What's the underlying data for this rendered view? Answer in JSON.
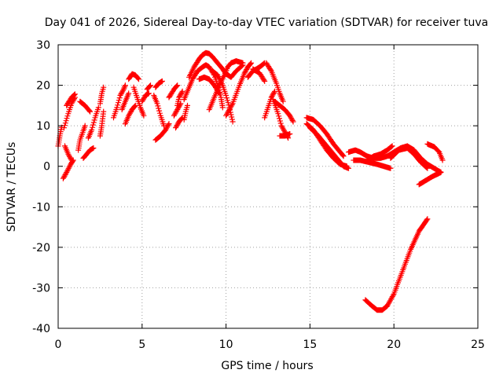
{
  "chart_data": {
    "type": "scatter",
    "title": "Day 041 of 2026, Sidereal Day-to-day VTEC variation (SDTVAR) for receiver tuva",
    "xlabel": "GPS time / hours",
    "ylabel": "SDTVAR / TECUs",
    "xlim": [
      0,
      25
    ],
    "ylim": [
      -40,
      30
    ],
    "xticks": [
      0,
      5,
      10,
      15,
      20,
      25
    ],
    "yticks": [
      30,
      20,
      10,
      0,
      -10,
      -20,
      -30,
      -40
    ],
    "grid": true,
    "marker": "+",
    "color": "#ff0000",
    "tracks": [
      [
        [
          0.0,
          5.0
        ],
        [
          0.1,
          7.5
        ],
        [
          0.2,
          9.6
        ]
      ],
      [
        [
          0.3,
          -3.0
        ],
        [
          0.5,
          -1.5
        ],
        [
          0.75,
          0.5
        ],
        [
          0.9,
          1.5
        ]
      ],
      [
        [
          0.35,
          9.5
        ],
        [
          0.6,
          13.0
        ],
        [
          0.8,
          15.5
        ],
        [
          1.0,
          17.0
        ]
      ],
      [
        [
          0.4,
          5.0
        ],
        [
          0.6,
          3.0
        ],
        [
          0.8,
          1.5
        ]
      ],
      [
        [
          0.5,
          15.0
        ],
        [
          0.8,
          17.0
        ],
        [
          1.0,
          17.8
        ]
      ],
      [
        [
          1.2,
          4.0
        ],
        [
          1.3,
          6.5
        ],
        [
          1.5,
          8.8
        ],
        [
          1.6,
          10.0
        ]
      ],
      [
        [
          1.3,
          16.0
        ],
        [
          1.6,
          15.0
        ],
        [
          1.9,
          13.5
        ]
      ],
      [
        [
          1.5,
          2.0
        ],
        [
          1.7,
          3.0
        ],
        [
          1.9,
          4.0
        ],
        [
          2.1,
          4.5
        ]
      ],
      [
        [
          1.8,
          7.0
        ],
        [
          2.0,
          9.0
        ],
        [
          2.2,
          12.0
        ],
        [
          2.4,
          14.5
        ]
      ],
      [
        [
          2.5,
          7.5
        ],
        [
          2.6,
          10.0
        ],
        [
          2.7,
          13.5
        ]
      ],
      [
        [
          2.5,
          15.5
        ],
        [
          2.6,
          18.0
        ],
        [
          2.7,
          19.5
        ]
      ],
      [
        [
          3.3,
          12.0
        ],
        [
          3.5,
          14.5
        ],
        [
          3.7,
          17.5
        ],
        [
          3.9,
          19.0
        ],
        [
          4.0,
          20.0
        ]
      ],
      [
        [
          3.8,
          14.0
        ],
        [
          4.0,
          16.0
        ],
        [
          4.2,
          18.0
        ]
      ],
      [
        [
          4.0,
          10.5
        ],
        [
          4.2,
          12.5
        ],
        [
          4.4,
          14.0
        ],
        [
          4.6,
          15.0
        ]
      ],
      [
        [
          4.2,
          21.5
        ],
        [
          4.4,
          22.8
        ],
        [
          4.6,
          22.5
        ],
        [
          4.8,
          21.5
        ]
      ],
      [
        [
          4.5,
          19.5
        ],
        [
          4.7,
          17.0
        ],
        [
          4.9,
          14.5
        ],
        [
          5.1,
          12.5
        ]
      ],
      [
        [
          5.0,
          16.0
        ],
        [
          5.2,
          17.5
        ],
        [
          5.4,
          18.0
        ]
      ],
      [
        [
          5.3,
          19.0
        ],
        [
          5.5,
          20.0
        ]
      ],
      [
        [
          5.8,
          19.5
        ],
        [
          6.0,
          20.5
        ],
        [
          6.2,
          21.0
        ]
      ],
      [
        [
          5.7,
          17.5
        ],
        [
          5.9,
          15.5
        ],
        [
          6.1,
          12.5
        ],
        [
          6.3,
          10.0
        ]
      ],
      [
        [
          5.8,
          6.5
        ],
        [
          6.1,
          7.5
        ],
        [
          6.4,
          9.0
        ],
        [
          6.6,
          10.5
        ]
      ],
      [
        [
          6.6,
          17.0
        ],
        [
          6.9,
          19.0
        ],
        [
          7.1,
          20.0
        ]
      ],
      [
        [
          6.9,
          12.5
        ],
        [
          7.1,
          14.0
        ],
        [
          7.3,
          15.5
        ]
      ],
      [
        [
          7.0,
          9.5
        ],
        [
          7.2,
          11.0
        ],
        [
          7.4,
          12.0
        ]
      ],
      [
        [
          7.1,
          15.0
        ],
        [
          7.2,
          17.0
        ],
        [
          7.4,
          18.5
        ]
      ],
      [
        [
          7.5,
          11.5
        ],
        [
          7.6,
          13.5
        ],
        [
          7.7,
          15.0
        ]
      ],
      [
        [
          7.5,
          16.5
        ],
        [
          7.8,
          19.5
        ],
        [
          8.0,
          21.5
        ],
        [
          8.3,
          23.5
        ],
        [
          8.6,
          24.5
        ],
        [
          8.8,
          25.0
        ],
        [
          9.0,
          24.5
        ],
        [
          9.3,
          22.5
        ],
        [
          9.5,
          20.0
        ],
        [
          9.7,
          17.0
        ],
        [
          9.8,
          14.5
        ]
      ],
      [
        [
          7.8,
          22.0
        ],
        [
          8.1,
          24.5
        ],
        [
          8.4,
          26.5
        ],
        [
          8.6,
          27.5
        ],
        [
          8.8,
          28.0
        ],
        [
          9.0,
          27.8
        ],
        [
          9.2,
          27.0
        ],
        [
          9.5,
          25.5
        ],
        [
          9.8,
          24.0
        ],
        [
          10.0,
          22.8
        ],
        [
          10.3,
          22.0
        ],
        [
          10.6,
          23.5
        ],
        [
          11.0,
          25.0
        ]
      ],
      [
        [
          8.4,
          21.5
        ],
        [
          8.7,
          22.0
        ],
        [
          9.0,
          21.5
        ],
        [
          9.3,
          20.0
        ],
        [
          9.6,
          18.0
        ]
      ],
      [
        [
          9.0,
          14.0
        ],
        [
          9.3,
          17.0
        ],
        [
          9.6,
          20.0
        ],
        [
          9.9,
          22.5
        ],
        [
          10.1,
          24.5
        ],
        [
          10.3,
          25.5
        ],
        [
          10.6,
          26.0
        ],
        [
          11.0,
          25.5
        ]
      ],
      [
        [
          9.2,
          23.5
        ],
        [
          9.5,
          22.5
        ],
        [
          9.8,
          20.0
        ],
        [
          10.0,
          17.5
        ],
        [
          10.2,
          14.5
        ],
        [
          10.4,
          11.0
        ]
      ],
      [
        [
          10.0,
          12.5
        ],
        [
          10.4,
          15.5
        ],
        [
          10.8,
          20.0
        ],
        [
          11.1,
          23.0
        ],
        [
          11.3,
          24.5
        ],
        [
          11.5,
          25.5
        ]
      ],
      [
        [
          11.3,
          22.0
        ],
        [
          11.6,
          23.5
        ],
        [
          12.0,
          24.5
        ],
        [
          12.3,
          25.5
        ]
      ],
      [
        [
          11.6,
          24.0
        ],
        [
          12.0,
          23.0
        ],
        [
          12.3,
          21.0
        ]
      ],
      [
        [
          12.3,
          12.0
        ],
        [
          12.5,
          14.5
        ],
        [
          12.7,
          17.0
        ],
        [
          12.9,
          18.5
        ]
      ],
      [
        [
          12.4,
          25.5
        ],
        [
          12.7,
          23.5
        ],
        [
          13.0,
          20.5
        ],
        [
          13.2,
          18.0
        ],
        [
          13.4,
          16.0
        ]
      ],
      [
        [
          12.8,
          16.5
        ],
        [
          13.1,
          13.0
        ],
        [
          13.3,
          10.0
        ],
        [
          13.5,
          8.5
        ],
        [
          13.7,
          7.0
        ]
      ],
      [
        [
          13.2,
          7.5
        ],
        [
          13.5,
          7.5
        ],
        [
          13.8,
          8.0
        ]
      ],
      [
        [
          12.9,
          16.0
        ],
        [
          13.2,
          15.0
        ],
        [
          13.5,
          14.0
        ],
        [
          13.8,
          12.5
        ],
        [
          14.0,
          11.0
        ]
      ],
      [
        [
          14.8,
          10.5
        ],
        [
          15.2,
          9.0
        ],
        [
          15.6,
          6.5
        ],
        [
          16.0,
          4.0
        ],
        [
          16.4,
          2.0
        ],
        [
          16.8,
          0.5
        ],
        [
          17.2,
          0.0
        ]
      ],
      [
        [
          14.8,
          12.0
        ],
        [
          15.2,
          11.5
        ],
        [
          15.6,
          10.0
        ],
        [
          16.0,
          8.0
        ],
        [
          16.4,
          5.5
        ],
        [
          16.8,
          3.5
        ],
        [
          17.0,
          2.5
        ]
      ],
      [
        [
          15.0,
          9.5
        ],
        [
          15.4,
          8.0
        ],
        [
          15.8,
          6.0
        ],
        [
          16.2,
          4.0
        ],
        [
          16.6,
          2.0
        ],
        [
          17.0,
          0.0
        ],
        [
          17.3,
          -0.5
        ]
      ],
      [
        [
          17.3,
          3.5
        ],
        [
          17.7,
          4.0
        ],
        [
          18.0,
          3.5
        ],
        [
          18.4,
          2.5
        ],
        [
          18.8,
          2.0
        ],
        [
          19.2,
          2.0
        ],
        [
          19.6,
          2.5
        ],
        [
          20.0,
          3.5
        ],
        [
          20.4,
          4.5
        ],
        [
          20.8,
          5.0
        ],
        [
          21.2,
          4.0
        ],
        [
          21.6,
          2.0
        ],
        [
          22.0,
          0.5
        ],
        [
          22.4,
          -0.5
        ],
        [
          22.8,
          -1.5
        ]
      ],
      [
        [
          17.6,
          1.5
        ],
        [
          18.0,
          1.5
        ],
        [
          18.5,
          1.0
        ],
        [
          19.0,
          0.5
        ],
        [
          19.4,
          0.0
        ],
        [
          19.8,
          -0.5
        ]
      ],
      [
        [
          18.4,
          1.5
        ],
        [
          18.8,
          2.5
        ],
        [
          19.2,
          3.0
        ],
        [
          19.6,
          4.0
        ],
        [
          19.9,
          5.0
        ]
      ],
      [
        [
          19.8,
          2.0
        ],
        [
          20.3,
          4.0
        ],
        [
          20.8,
          4.5
        ],
        [
          21.2,
          3.0
        ],
        [
          21.6,
          1.0
        ],
        [
          22.0,
          -0.5
        ]
      ],
      [
        [
          21.5,
          -4.5
        ],
        [
          21.9,
          -3.5
        ],
        [
          22.3,
          -2.5
        ],
        [
          22.8,
          -1.5
        ]
      ],
      [
        [
          22.0,
          5.5
        ],
        [
          22.4,
          4.8
        ],
        [
          22.7,
          3.5
        ],
        [
          22.9,
          1.5
        ]
      ],
      [
        [
          18.3,
          -33.0
        ],
        [
          18.7,
          -34.5
        ],
        [
          19.0,
          -35.5
        ],
        [
          19.3,
          -35.5
        ],
        [
          19.6,
          -34.5
        ],
        [
          20.0,
          -31.5
        ],
        [
          20.5,
          -26.0
        ],
        [
          21.0,
          -20.5
        ],
        [
          21.5,
          -16.0
        ],
        [
          22.0,
          -13.0
        ]
      ]
    ]
  }
}
